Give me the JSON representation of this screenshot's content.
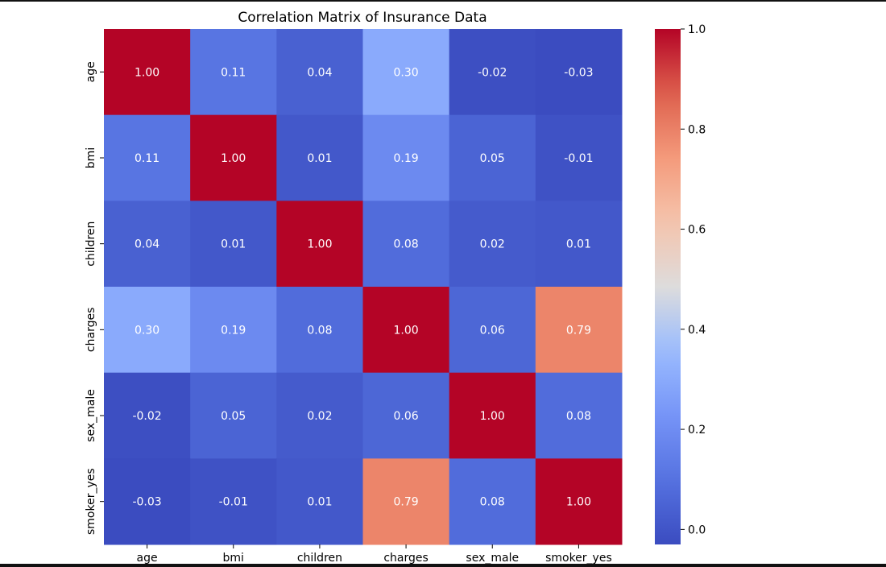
{
  "chart_data": {
    "type": "heatmap",
    "title": "Correlation Matrix of Insurance Data",
    "xlabel": "",
    "ylabel": "",
    "x_categories": [
      "age",
      "bmi",
      "children",
      "charges",
      "sex_male",
      "smoker_yes"
    ],
    "y_categories": [
      "age",
      "bmi",
      "children",
      "charges",
      "sex_male",
      "smoker_yes"
    ],
    "values": [
      [
        1.0,
        0.11,
        0.04,
        0.3,
        -0.02,
        -0.03
      ],
      [
        0.11,
        1.0,
        0.01,
        0.19,
        0.05,
        -0.01
      ],
      [
        0.04,
        0.01,
        1.0,
        0.08,
        0.02,
        0.01
      ],
      [
        0.3,
        0.19,
        0.08,
        1.0,
        0.06,
        0.79
      ],
      [
        -0.02,
        0.05,
        0.02,
        0.06,
        1.0,
        0.08
      ],
      [
        -0.03,
        -0.01,
        0.01,
        0.79,
        0.08,
        1.0
      ]
    ],
    "value_labels": [
      [
        "1.00",
        "0.11",
        "0.04",
        "0.30",
        "-0.02",
        "-0.03"
      ],
      [
        "0.11",
        "1.00",
        "0.01",
        "0.19",
        "0.05",
        "-0.01"
      ],
      [
        "0.04",
        "0.01",
        "1.00",
        "0.08",
        "0.02",
        "0.01"
      ],
      [
        "0.30",
        "0.19",
        "0.08",
        "1.00",
        "0.06",
        "0.79"
      ],
      [
        "-0.02",
        "0.05",
        "0.02",
        "0.06",
        "1.00",
        "0.08"
      ],
      [
        "-0.03",
        "-0.01",
        "0.01",
        "0.79",
        "0.08",
        "1.00"
      ]
    ],
    "colormap": "coolwarm",
    "color_range": [
      -0.03,
      1.0
    ],
    "colorbar": {
      "ticks": [
        0.0,
        0.2,
        0.4,
        0.6,
        0.8,
        1.0
      ],
      "tick_labels": [
        "0.0",
        "0.2",
        "0.4",
        "0.6",
        "0.8",
        "1.0"
      ]
    },
    "grid": false
  }
}
